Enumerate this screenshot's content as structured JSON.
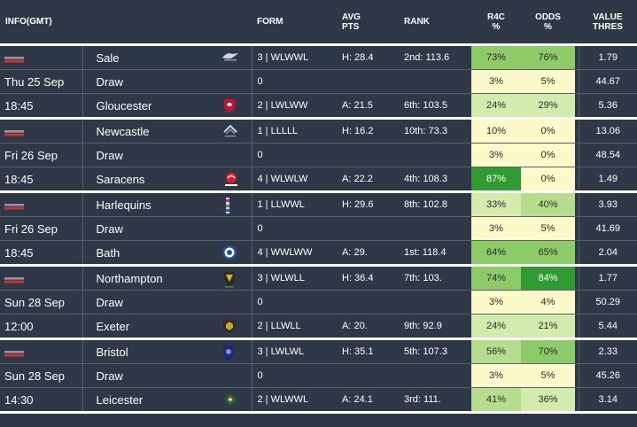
{
  "header": {
    "info": "INFO(GMT)",
    "form": "FORM",
    "avg_pts_1": "AVG",
    "avg_pts_2": "PTS",
    "rank": "RANK",
    "r4c_1": "R4C",
    "r4c_2": "%",
    "odds_1": "ODDS",
    "odds_2": "%",
    "value_1": "VALUE",
    "value_2": "THRES"
  },
  "colors": {
    "bg": "#2f3847",
    "pale": "#fdf9c8",
    "light_green": "#d3ecae",
    "mid_green": "#8ccb68",
    "dark_green": "#2f9b30"
  },
  "matches": [
    {
      "date": "Thu 25 Sep",
      "time": "18:45",
      "rows": [
        {
          "team": "Sale",
          "crest": "sale-sharks-crest-icon",
          "form": "3 | WLWWL",
          "avg": "H: 28.4",
          "rank": "2nd: 113.6",
          "r4c": "73%",
          "odds": "76%",
          "value": "1.79",
          "r4c_bg": "#8ccb68",
          "odds_bg": "#8ccb68"
        },
        {
          "team": "Draw",
          "crest": "",
          "form": "0",
          "avg": "",
          "rank": "",
          "r4c": "3%",
          "odds": "5%",
          "value": "44.67",
          "r4c_bg": "#fdf9c8",
          "odds_bg": "#fdf9c8"
        },
        {
          "team": "Gloucester",
          "crest": "gloucester-crest-icon",
          "form": "2 | LWLWW",
          "avg": "A: 21.5",
          "rank": "6th: 103.5",
          "r4c": "24%",
          "odds": "29%",
          "value": "5.36",
          "r4c_bg": "#d3ecae",
          "odds_bg": "#d3ecae"
        }
      ]
    },
    {
      "date": "Fri 26 Sep",
      "time": "18:45",
      "rows": [
        {
          "team": "Newcastle",
          "crest": "newcastle-crest-icon",
          "form": "1 | LLLLL",
          "avg": "H: 16.2",
          "rank": "10th: 73.3",
          "r4c": "10%",
          "odds": "0%",
          "value": "13.06",
          "r4c_bg": "#fdf9c8",
          "odds_bg": "#fdf9c8"
        },
        {
          "team": "Draw",
          "crest": "",
          "form": "0",
          "avg": "",
          "rank": "",
          "r4c": "3%",
          "odds": "0%",
          "value": "48.54",
          "r4c_bg": "#fdf9c8",
          "odds_bg": "#fdf9c8"
        },
        {
          "team": "Saracens",
          "crest": "saracens-crest-icon",
          "form": "4 | WLWLW",
          "avg": "A: 22.2",
          "rank": "4th: 108.3",
          "r4c": "87%",
          "odds": "0%",
          "value": "1.49",
          "r4c_bg": "#2f9b30",
          "odds_bg": "#fdf9c8"
        }
      ]
    },
    {
      "date": "Fri 26 Sep",
      "time": "18:45",
      "rows": [
        {
          "team": "Harlequins",
          "crest": "harlequins-crest-icon",
          "form": "1 | LLWWL",
          "avg": "H: 29.6",
          "rank": "8th: 102.8",
          "r4c": "33%",
          "odds": "40%",
          "value": "3.93",
          "r4c_bg": "#d3ecae",
          "odds_bg": "#b6dd8e"
        },
        {
          "team": "Draw",
          "crest": "",
          "form": "0",
          "avg": "",
          "rank": "",
          "r4c": "3%",
          "odds": "5%",
          "value": "41.69",
          "r4c_bg": "#fdf9c8",
          "odds_bg": "#fdf9c8"
        },
        {
          "team": "Bath",
          "crest": "bath-crest-icon",
          "form": "4 | WWLWW",
          "avg": "A: 29.",
          "rank": "1st: 118.4",
          "r4c": "64%",
          "odds": "65%",
          "value": "2.04",
          "r4c_bg": "#8ccb68",
          "odds_bg": "#8ccb68"
        }
      ]
    },
    {
      "date": "Sun 28 Sep",
      "time": "12:00",
      "rows": [
        {
          "team": "Northampton",
          "crest": "northampton-crest-icon",
          "form": "3 | WLWLL",
          "avg": "H: 36.4",
          "rank": "7th: 103.",
          "r4c": "74%",
          "odds": "84%",
          "value": "1.77",
          "r4c_bg": "#8ccb68",
          "odds_bg": "#2f9b30"
        },
        {
          "team": "Draw",
          "crest": "",
          "form": "0",
          "avg": "",
          "rank": "",
          "r4c": "3%",
          "odds": "4%",
          "value": "50.29",
          "r4c_bg": "#fdf9c8",
          "odds_bg": "#fdf9c8"
        },
        {
          "team": "Exeter",
          "crest": "exeter-crest-icon",
          "form": "2 | LLWLL",
          "avg": "A: 20.",
          "rank": "9th: 92.9",
          "r4c": "24%",
          "odds": "21%",
          "value": "5.44",
          "r4c_bg": "#d3ecae",
          "odds_bg": "#d3ecae"
        }
      ]
    },
    {
      "date": "Sun 28 Sep",
      "time": "14:30",
      "rows": [
        {
          "team": "Bristol",
          "crest": "bristol-crest-icon",
          "form": "3 | LWLWL",
          "avg": "H: 35.1",
          "rank": "5th: 107.3",
          "r4c": "56%",
          "odds": "70%",
          "value": "2.33",
          "r4c_bg": "#b6dd8e",
          "odds_bg": "#8ccb68"
        },
        {
          "team": "Draw",
          "crest": "",
          "form": "0",
          "avg": "",
          "rank": "",
          "r4c": "3%",
          "odds": "5%",
          "value": "45.26",
          "r4c_bg": "#fdf9c8",
          "odds_bg": "#fdf9c8"
        },
        {
          "team": "Leicester",
          "crest": "leicester-crest-icon",
          "form": "2 | WLWWL",
          "avg": "A: 24.1",
          "rank": "3rd: 111.",
          "r4c": "41%",
          "odds": "36%",
          "value": "3.14",
          "r4c_bg": "#b6dd8e",
          "odds_bg": "#d3ecae"
        }
      ]
    }
  ]
}
